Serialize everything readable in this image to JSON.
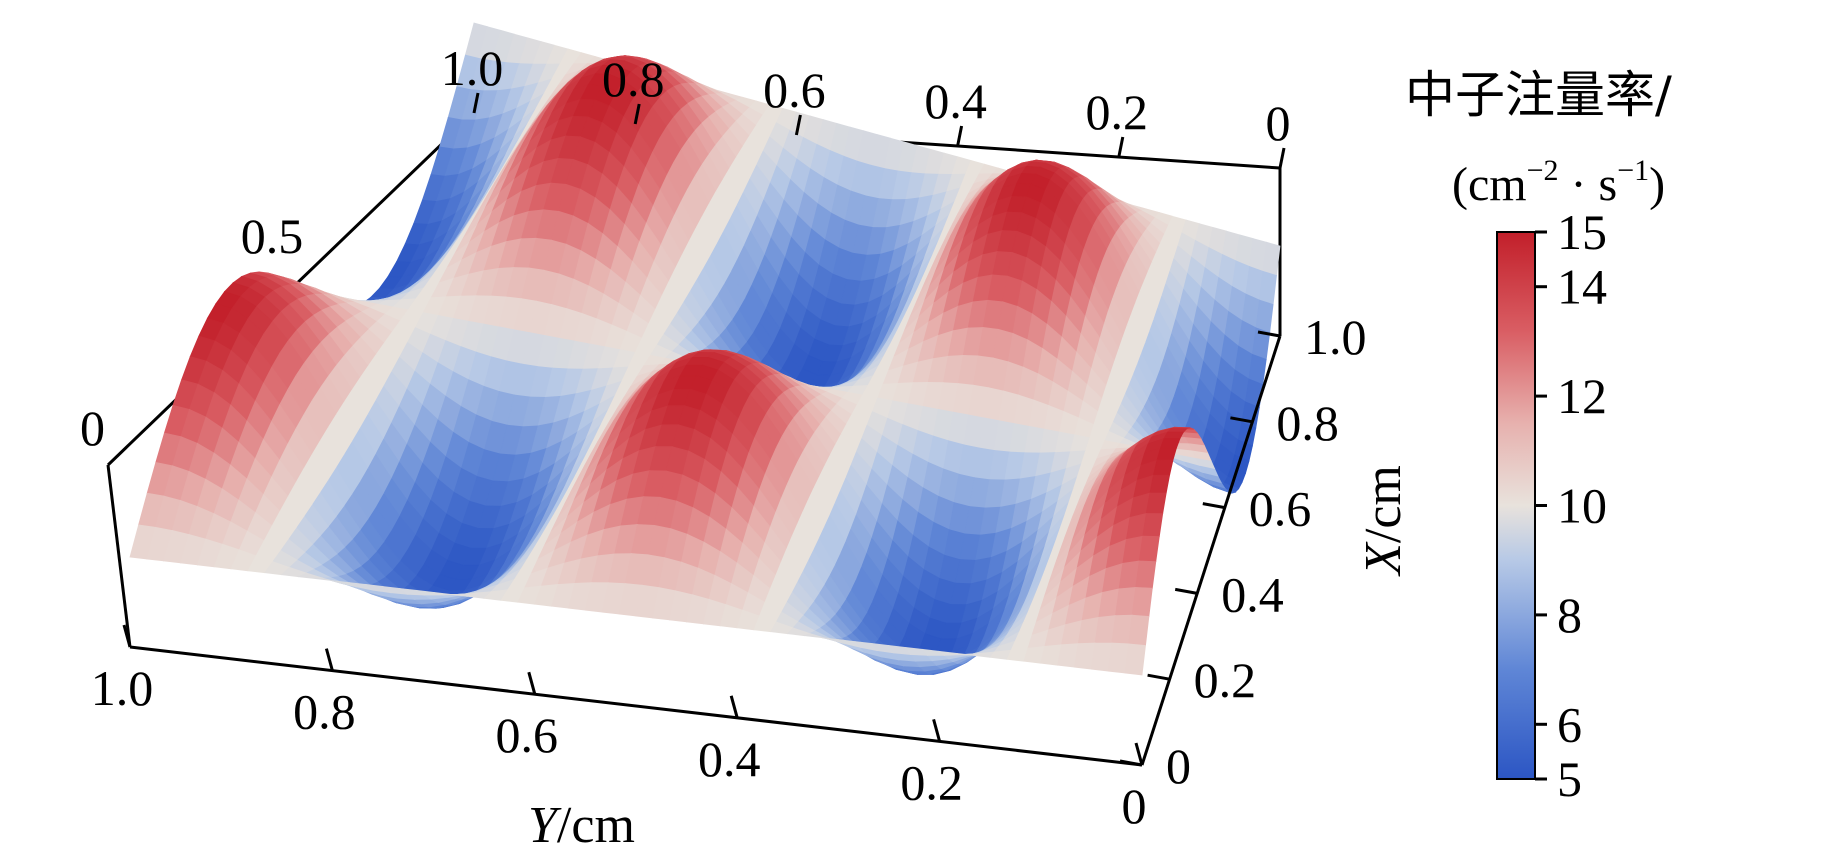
{
  "chart_data": {
    "type": "surface3d",
    "title": "",
    "xlabel": {
      "italic": "X",
      "rest": "/cm"
    },
    "ylabel": {
      "italic": "Y",
      "rest": "/cm"
    },
    "x_range": [
      0,
      1.0
    ],
    "y_range": [
      0,
      1.0
    ],
    "z_range": [
      5,
      15
    ],
    "x_ticks": [
      "0",
      "0.2",
      "0.4",
      "0.6",
      "0.8",
      "1.0"
    ],
    "y_ticks": [
      "0",
      "0.2",
      "0.4",
      "0.6",
      "0.8",
      "1.0"
    ],
    "top_ticks": [
      "1.0",
      "0.8",
      "0.6",
      "0.4",
      "0.2",
      "0"
    ],
    "z_ticks": [
      "0",
      "0.5"
    ],
    "surface": {
      "formula": "10 + 5*cos(2*pi*2*y)*sin(2*pi*x)",
      "peaks": 15,
      "valleys": 5,
      "mean": 10
    },
    "colorbar": {
      "title": "中子注量率/",
      "unit": {
        "open": "(cm",
        "sup1": "−2",
        "mid": " · s",
        "sup2": "−1",
        "close": ")"
      },
      "min": 5,
      "max": 15,
      "ticks": [
        "5",
        "6",
        "8",
        "10",
        "12",
        "14",
        "15"
      ],
      "low_color": "#2c56c4",
      "mid_color": "#e8e2dc",
      "high_color": "#c21f2a"
    },
    "grid": false
  }
}
